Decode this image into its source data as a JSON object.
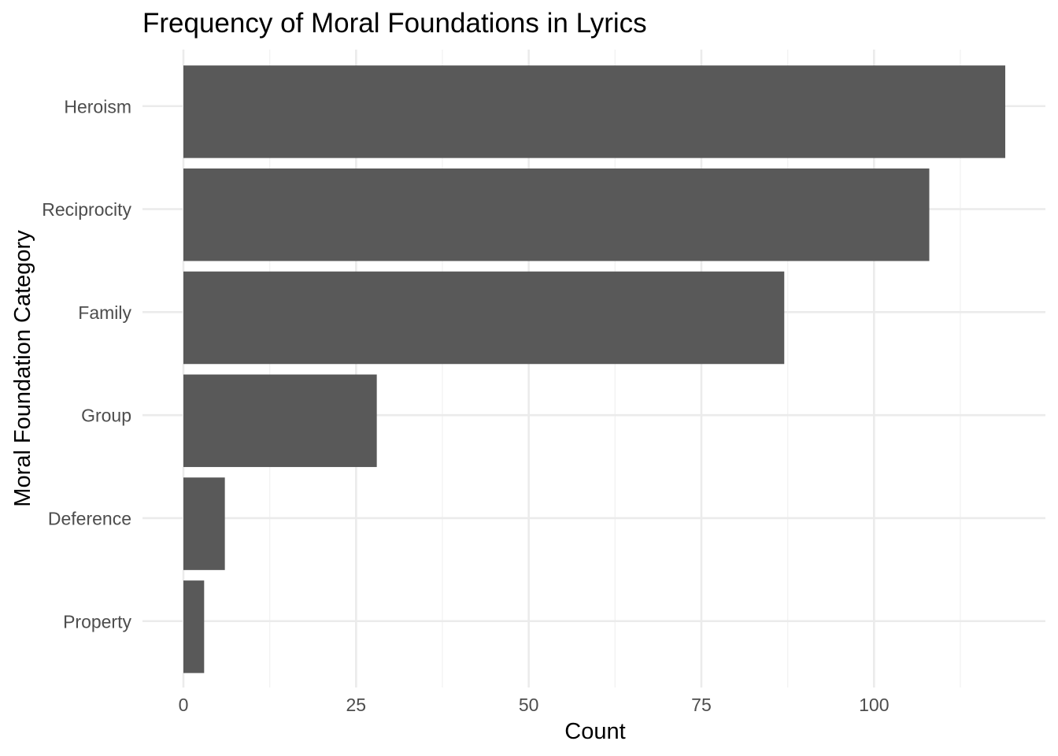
{
  "chart_data": {
    "type": "bar",
    "orientation": "horizontal",
    "title": "Frequency of Moral Foundations in Lyrics",
    "xlabel": "Count",
    "ylabel": "Moral Foundation Category",
    "categories": [
      "Heroism",
      "Reciprocity",
      "Family",
      "Group",
      "Deference",
      "Property"
    ],
    "values": [
      119,
      108,
      87,
      28,
      6,
      3
    ],
    "xlim": [
      0,
      119
    ],
    "x_ticks": [
      0,
      25,
      50,
      75,
      100
    ],
    "x_tick_labels": [
      "0",
      "25",
      "50",
      "75",
      "100"
    ],
    "grid": true,
    "legend": "none",
    "colors": {
      "bar": "#595959",
      "grid_major": "#ebebeb",
      "grid_minor": "#f2f2f2",
      "tick_text": "#4d4d4d",
      "title_text": "#000000"
    }
  }
}
